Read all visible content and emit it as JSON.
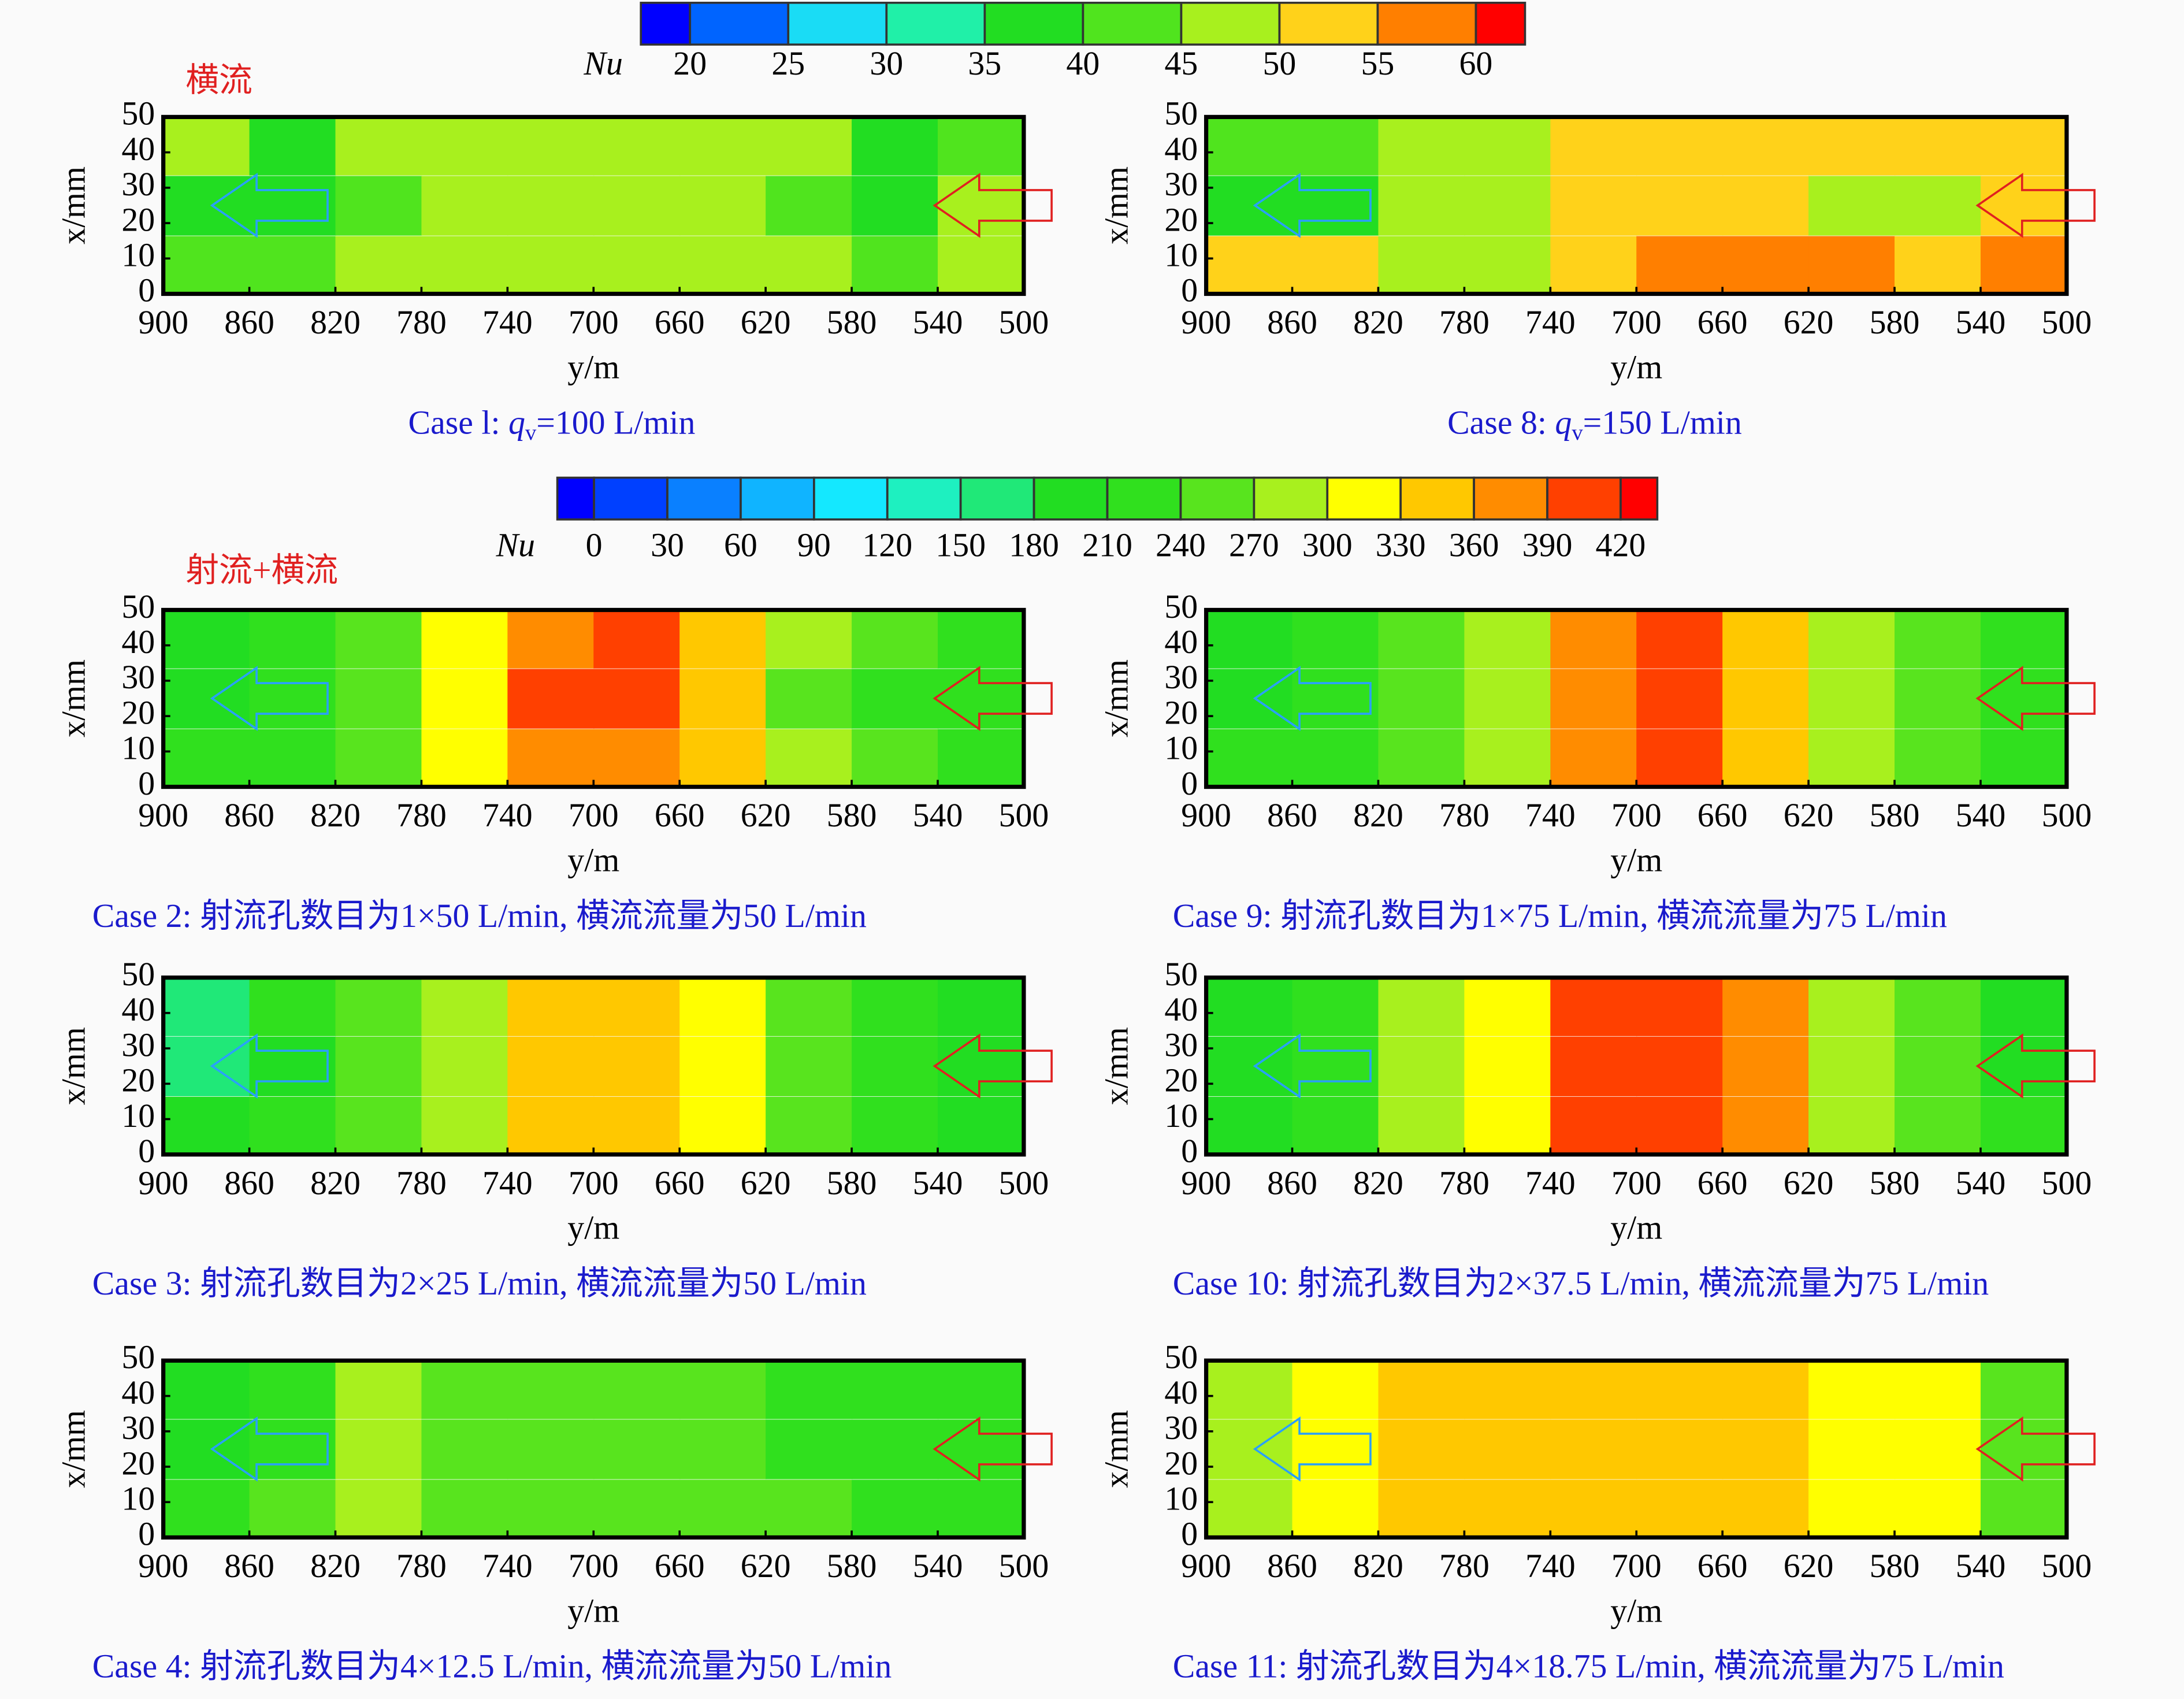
{
  "chart_data": [
    {
      "type": "heatmap-group",
      "title": "横流",
      "colorbar": {
        "label": "Nu",
        "ticks": [
          20,
          25,
          30,
          35,
          40,
          45,
          50,
          55,
          60
        ],
        "colors": [
          "#0000ff",
          "#0064ff",
          "#1adcf5",
          "#20f0a8",
          "#22dd22",
          "#50e41e",
          "#a8f01e",
          "#ffd21a",
          "#ff7f00",
          "#ff0000"
        ]
      },
      "panels": [
        {
          "type": "heatmap",
          "caption": [
            "Case l: ",
            "q",
            "v",
            "=100 L/min"
          ],
          "x_label": "y/m",
          "y_label": "x/mm",
          "xlim": [
            900,
            500
          ],
          "ylim": [
            0,
            50
          ],
          "xticks": [
            900,
            860,
            820,
            780,
            740,
            700,
            660,
            620,
            580,
            540,
            500
          ],
          "yticks": [
            0,
            10,
            20,
            30,
            40,
            50
          ],
          "x": [
            880,
            840,
            800,
            760,
            720,
            680,
            640,
            600,
            560,
            520
          ],
          "y": [
            42,
            25,
            8
          ],
          "values": [
            [
              46,
              38,
              46,
              47,
              47,
              47,
              47,
              46,
              38,
              44
            ],
            [
              38,
              38,
              44,
              47,
              47,
              47,
              47,
              40,
              38,
              46
            ],
            [
              40,
              40,
              46,
              47,
              47,
              47,
              47,
              46,
              40,
              48
            ]
          ]
        },
        {
          "type": "heatmap",
          "caption": [
            "Case 8: ",
            "q",
            "v",
            "=150 L/min"
          ],
          "x_label": "y/m",
          "y_label": "x/mm",
          "xlim": [
            900,
            500
          ],
          "ylim": [
            0,
            50
          ],
          "xticks": [
            900,
            860,
            820,
            780,
            740,
            700,
            660,
            620,
            580,
            540,
            500
          ],
          "yticks": [
            0,
            10,
            20,
            30,
            40,
            50
          ],
          "x": [
            880,
            840,
            800,
            760,
            720,
            680,
            640,
            600,
            560,
            520
          ],
          "y": [
            42,
            25,
            8
          ],
          "values": [
            [
              42,
              42,
              47,
              47,
              52,
              52,
              52,
              52,
              52,
              52
            ],
            [
              38,
              38,
              47,
              47,
              52,
              53,
              52,
              48,
              46,
              54
            ],
            [
              50,
              50,
              47,
              47,
              54,
              56,
              56,
              56,
              54,
              56
            ]
          ]
        }
      ]
    },
    {
      "type": "heatmap-group",
      "title": "射流+横流",
      "colorbar": {
        "label": "Nu",
        "ticks": [
          0,
          30,
          60,
          90,
          120,
          150,
          180,
          210,
          240,
          270,
          300,
          330,
          360,
          390,
          420
        ],
        "colors": [
          "#0000ff",
          "#0040ff",
          "#0a80ff",
          "#10b4ff",
          "#14e8ff",
          "#1ef0c0",
          "#20e878",
          "#22dd22",
          "#30e01e",
          "#58e41e",
          "#a8f01e",
          "#ffff00",
          "#ffc800",
          "#ff8c00",
          "#ff4000",
          "#ff0000"
        ]
      },
      "panels": [
        {
          "type": "heatmap",
          "caption": "Case 2: 射流孔数目为1×50 L/min, 横流流量为50 L/min",
          "x_label": "y/m",
          "y_label": "x/mm",
          "xlim": [
            900,
            500
          ],
          "ylim": [
            0,
            50
          ],
          "xticks": [
            900,
            860,
            820,
            780,
            740,
            700,
            660,
            620,
            580,
            540,
            500
          ],
          "yticks": [
            0,
            10,
            20,
            30,
            40,
            50
          ],
          "x": [
            880,
            840,
            800,
            760,
            720,
            680,
            640,
            600,
            560,
            520
          ],
          "y": [
            42,
            25,
            8
          ],
          "values": [
            [
              205,
              225,
              255,
              300,
              380,
              400,
              330,
              270,
              240,
              220
            ],
            [
              200,
              215,
              250,
              300,
              390,
              400,
              330,
              265,
              235,
              215
            ],
            [
              210,
              225,
              255,
              300,
              380,
              380,
              330,
              270,
              240,
              225
            ]
          ]
        },
        {
          "type": "heatmap",
          "caption": "Case 9: 射流孔数目为1×75 L/min, 横流流量为75 L/min",
          "x_label": "y/m",
          "y_label": "x/mm",
          "xlim": [
            900,
            500
          ],
          "ylim": [
            0,
            50
          ],
          "xticks": [
            900,
            860,
            820,
            780,
            740,
            700,
            660,
            620,
            580,
            540,
            500
          ],
          "yticks": [
            0,
            10,
            20,
            30,
            40,
            50
          ],
          "x": [
            880,
            840,
            800,
            760,
            720,
            680,
            640,
            600,
            560,
            520
          ],
          "y": [
            42,
            25,
            8
          ],
          "values": [
            [
              200,
              225,
              250,
              285,
              360,
              400,
              350,
              280,
              250,
              220
            ],
            [
              185,
              220,
              250,
              280,
              365,
              400,
              355,
              280,
              245,
              215
            ],
            [
              210,
              225,
              250,
              285,
              360,
              395,
              350,
              285,
              250,
              225
            ]
          ]
        },
        {
          "type": "heatmap",
          "caption": "Case 3: 射流孔数目为2×25 L/min, 横流流量为50 L/min",
          "x_label": "y/m",
          "y_label": "x/mm",
          "xlim": [
            900,
            500
          ],
          "ylim": [
            0,
            50
          ],
          "xticks": [
            900,
            860,
            820,
            780,
            740,
            700,
            660,
            620,
            580,
            540,
            500
          ],
          "yticks": [
            0,
            10,
            20,
            30,
            40,
            50
          ],
          "x": [
            880,
            840,
            800,
            760,
            720,
            680,
            640,
            600,
            560,
            520
          ],
          "y": [
            42,
            25,
            8
          ],
          "values": [
            [
              175,
              210,
              240,
              280,
              340,
              340,
              300,
              250,
              230,
              190
            ],
            [
              165,
              205,
              240,
              280,
              340,
              340,
              300,
              250,
              225,
              185
            ],
            [
              180,
              210,
              240,
              280,
              340,
              340,
              300,
              250,
              230,
              195
            ]
          ]
        },
        {
          "type": "heatmap",
          "caption": "Case 10: 射流孔数目为2×37.5 L/min, 横流流量为75 L/min",
          "x_label": "y/m",
          "y_label": "x/mm",
          "xlim": [
            900,
            500
          ],
          "ylim": [
            0,
            50
          ],
          "xticks": [
            900,
            860,
            820,
            780,
            740,
            700,
            660,
            620,
            580,
            540,
            500
          ],
          "yticks": [
            0,
            10,
            20,
            30,
            40,
            50
          ],
          "x": [
            880,
            840,
            800,
            760,
            720,
            680,
            640,
            600,
            560,
            520
          ],
          "y": [
            42,
            25,
            8
          ],
          "values": [
            [
              205,
              230,
              270,
              320,
              400,
              400,
              360,
              290,
              245,
              205
            ],
            [
              195,
              230,
              270,
              320,
              400,
              400,
              360,
              290,
              240,
              200
            ],
            [
              205,
              230,
              270,
              320,
              400,
              400,
              360,
              290,
              245,
              210
            ]
          ]
        },
        {
          "type": "heatmap",
          "caption": "Case 4: 射流孔数目为4×12.5 L/min, 横流流量为50 L/min",
          "x_label": "y/m",
          "y_label": "x/mm",
          "xlim": [
            900,
            500
          ],
          "ylim": [
            0,
            50
          ],
          "xticks": [
            900,
            860,
            820,
            780,
            740,
            700,
            660,
            620,
            580,
            540,
            500
          ],
          "yticks": [
            0,
            10,
            20,
            30,
            40,
            50
          ],
          "x": [
            880,
            840,
            800,
            760,
            720,
            680,
            640,
            600,
            560,
            520
          ],
          "y": [
            42,
            25,
            8
          ],
          "values": [
            [
              205,
              235,
              270,
              240,
              265,
              240,
              240,
              235,
              225,
              215
            ],
            [
              195,
              235,
              270,
              240,
              265,
              240,
              240,
              235,
              225,
              210
            ],
            [
              210,
              240,
              270,
              245,
              265,
              245,
              245,
              240,
              230,
              220
            ]
          ]
        },
        {
          "type": "heatmap",
          "caption": "Case 11: 射流孔数目为4×18.75 L/min, 横流流量为75 L/min",
          "x_label": "y/m",
          "y_label": "x/mm",
          "xlim": [
            900,
            500
          ],
          "ylim": [
            0,
            50
          ],
          "xticks": [
            900,
            860,
            820,
            780,
            740,
            700,
            660,
            620,
            580,
            540,
            500
          ],
          "yticks": [
            0,
            10,
            20,
            30,
            40,
            50
          ],
          "x": [
            880,
            840,
            800,
            760,
            720,
            680,
            640,
            600,
            560,
            520
          ],
          "y": [
            42,
            25,
            8
          ],
          "values": [
            [
              285,
              310,
              340,
              335,
              330,
              340,
              330,
              310,
              305,
              255
            ],
            [
              285,
              310,
              340,
              350,
              330,
              345,
              330,
              310,
              300,
              250
            ],
            [
              290,
              315,
              340,
              340,
              335,
              340,
              335,
              315,
              305,
              265
            ]
          ]
        }
      ]
    }
  ]
}
